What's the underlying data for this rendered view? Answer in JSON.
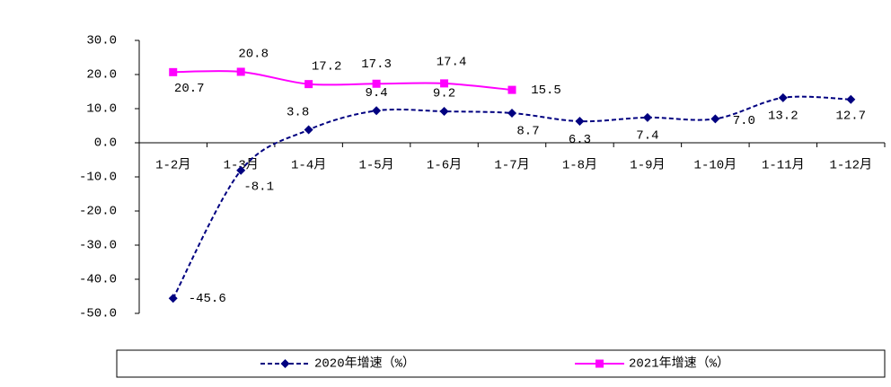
{
  "chart_data": {
    "type": "line",
    "categories": [
      "1-2月",
      "1-3月",
      "1-4月",
      "1-5月",
      "1-6月",
      "1-7月",
      "1-8月",
      "1-9月",
      "1-10月",
      "1-11月",
      "1-12月"
    ],
    "series": [
      {
        "name": "2020年增速（%）",
        "color": "#000080",
        "marker": "diamond",
        "dashed": true,
        "values": [
          -45.6,
          -8.1,
          3.8,
          9.4,
          9.2,
          8.7,
          6.3,
          7.4,
          7.0,
          13.2,
          12.7
        ],
        "value_labels": [
          "-45.6",
          "-8.1",
          "3.8",
          "9.4",
          "9.2",
          "8.7",
          "6.3",
          "7.4",
          "7.0",
          "13.2",
          "12.7"
        ]
      },
      {
        "name": "2021年增速（%）",
        "color": "#ff00ff",
        "marker": "square",
        "dashed": false,
        "values": [
          20.7,
          20.8,
          17.2,
          17.3,
          17.4,
          15.5,
          null,
          null,
          null,
          null,
          null
        ],
        "value_labels": [
          "20.7",
          "20.8",
          "17.2",
          "17.3",
          "17.4",
          "15.5",
          null,
          null,
          null,
          null,
          null
        ]
      }
    ],
    "ylim": [
      -50,
      30
    ],
    "yticks": [
      {
        "value": -50,
        "label": "-50.0"
      },
      {
        "value": -40,
        "label": "-40.0"
      },
      {
        "value": -30,
        "label": "-30.0"
      },
      {
        "value": -20,
        "label": "-20.0"
      },
      {
        "value": -10,
        "label": "-10.0"
      },
      {
        "value": 0,
        "label": "0.0"
      },
      {
        "value": 10,
        "label": "10.0"
      },
      {
        "value": 20,
        "label": "20.0"
      },
      {
        "value": 30,
        "label": "30.0"
      }
    ],
    "legend": "bottom"
  }
}
